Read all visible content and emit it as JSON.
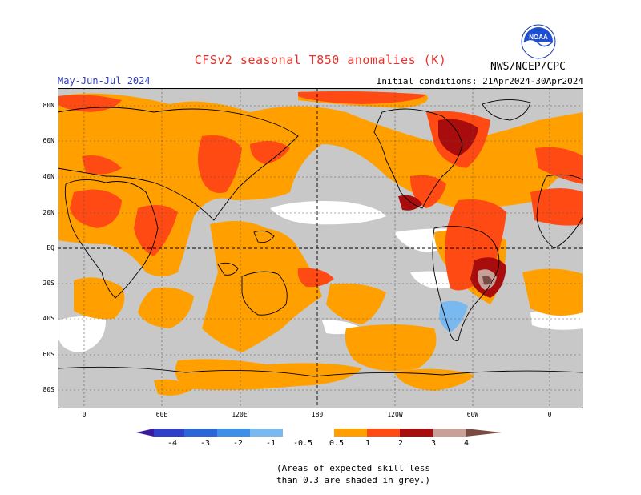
{
  "header": {
    "title": "CFSv2 seasonal T850 anomalies (K)",
    "period": "May-Jun-Jul 2024",
    "initial_conditions": "Initial conditions: 21Apr2024-30Apr2024",
    "agency": "NWS/NCEP/CPC",
    "logo_text": "NOAA"
  },
  "axes": {
    "lat_labels": [
      "80N",
      "60N",
      "40N",
      "20N",
      "EQ",
      "20S",
      "40S",
      "60S",
      "80S"
    ],
    "lon_labels": [
      "0",
      "60E",
      "120E",
      "180",
      "120W",
      "60W",
      "0"
    ]
  },
  "colorbar": {
    "labels": [
      "-4",
      "-3",
      "-2",
      "-1",
      "-0.5",
      "0.5",
      "1",
      "2",
      "3",
      "4"
    ],
    "colors": {
      "lt_-4": "#3a1a9c",
      "-4_-3": "#2f3fc8",
      "-3_-2": "#2a66d8",
      "-2_-1": "#3d8fe8",
      "-1_-0.5": "#7ab8f0",
      "-0.5_0.5": "#ffffff",
      "0.5_1": "#ffa000",
      "1_2": "#ff4a14",
      "2_3": "#a80c0c",
      "3_4": "#c8a098",
      "gt_4": "#7a4a44"
    },
    "grey_mask": "#c8c8c8"
  },
  "note": {
    "line1": "(Areas of expected skill less",
    "line2": "than 0.3 are shaded in grey.)"
  }
}
